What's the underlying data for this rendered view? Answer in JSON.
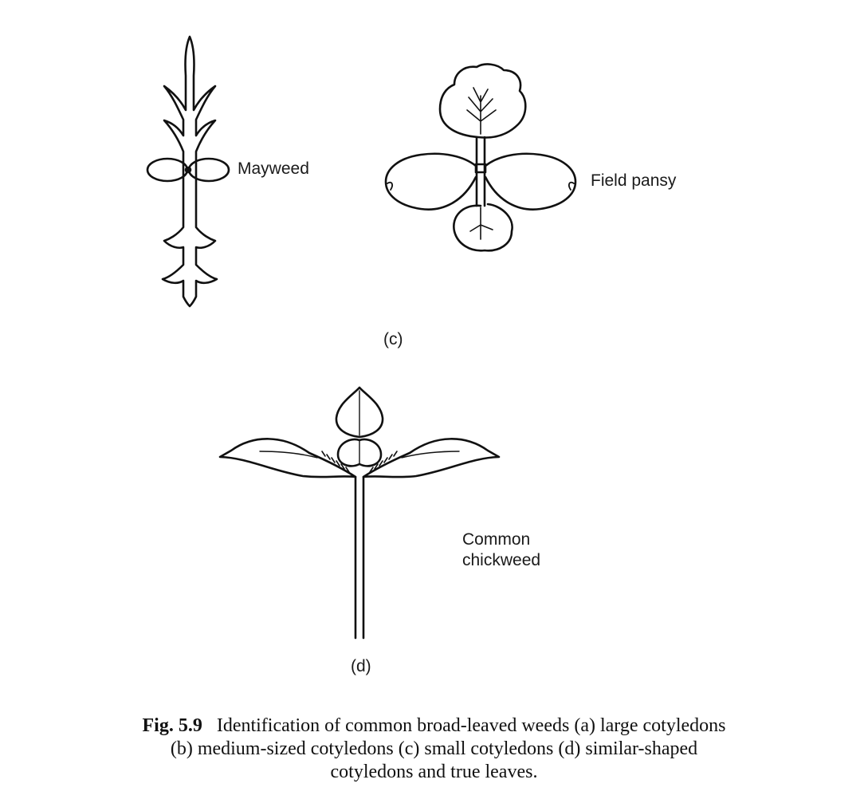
{
  "labels": {
    "mayweed": "Mayweed",
    "field_pansy": "Field pansy",
    "panel_c": "(c)",
    "chickweed_line1": "Common",
    "chickweed_line2": "chickweed",
    "panel_d": "(d)"
  },
  "caption": {
    "number": "Fig. 5.9",
    "line1": "Identification of common broad-leaved weeds (a) large cotyledons",
    "line2": "(b) medium-sized cotyledons (c) small cotyledons (d) similar-shaped",
    "line3": "cotyledons and true leaves."
  },
  "colors": {
    "ink": "#111111",
    "background": "#ffffff"
  }
}
